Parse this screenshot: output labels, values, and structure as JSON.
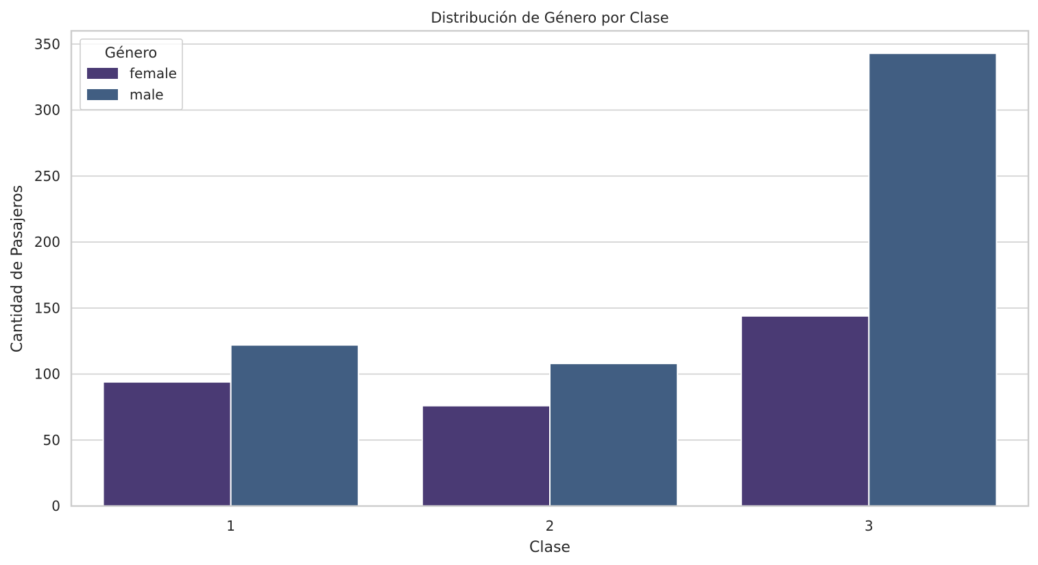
{
  "chart_data": {
    "type": "bar",
    "title": "Distribución de Género por Clase",
    "xlabel": "Clase",
    "ylabel": "Cantidad de Pasajeros",
    "categories": [
      "1",
      "2",
      "3"
    ],
    "series": [
      {
        "name": "female",
        "values": [
          94,
          76,
          144
        ],
        "color": "#4a3a74"
      },
      {
        "name": "male",
        "values": [
          122,
          108,
          343
        ],
        "color": "#415e82"
      }
    ],
    "ylim": [
      0,
      360
    ],
    "yticks": [
      0,
      50,
      100,
      150,
      200,
      250,
      300,
      350
    ],
    "grid": true,
    "legend": {
      "title": "Género",
      "position": "top-left"
    }
  }
}
